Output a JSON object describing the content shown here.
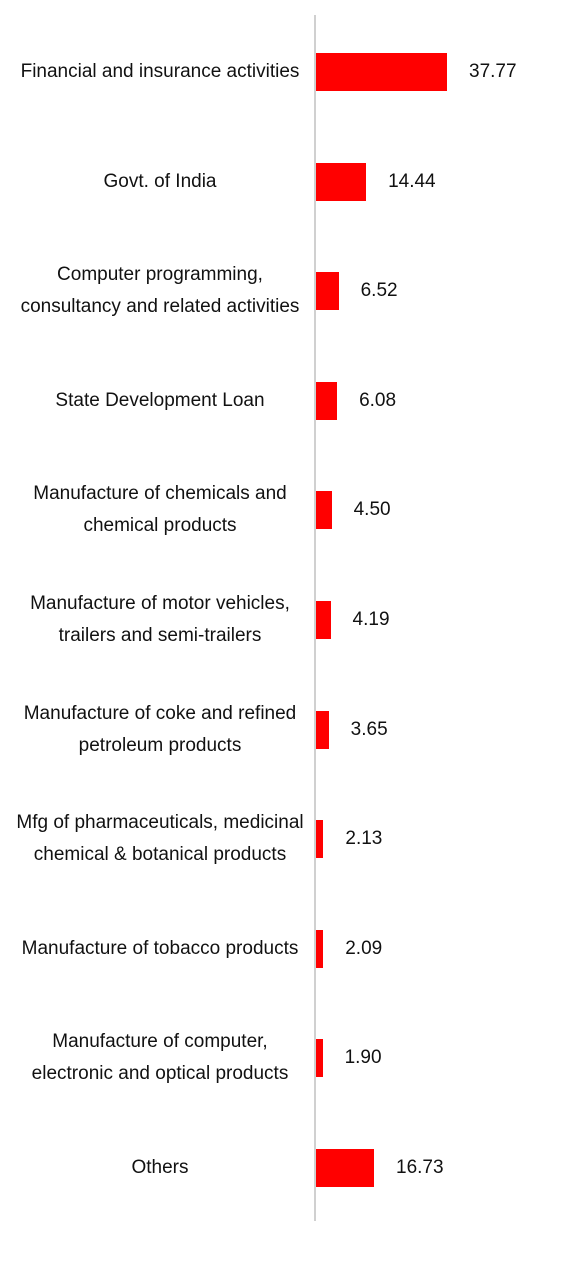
{
  "chart_data": {
    "type": "bar",
    "orientation": "horizontal",
    "categories": [
      "Financial and insurance activities",
      "Govt. of India",
      "Computer programming, consultancy and related activities",
      "State Development Loan",
      "Manufacture of chemicals and chemical products",
      "Manufacture of motor vehicles, trailers and semi-trailers",
      "Manufacture of coke and refined petroleum products",
      "Mfg of pharmaceuticals, medicinal chemical & botanical products",
      "Manufacture of tobacco products",
      "Manufacture of computer, electronic and optical products",
      "Others"
    ],
    "values": [
      37.77,
      14.44,
      6.52,
      6.08,
      4.5,
      4.19,
      3.65,
      2.13,
      2.09,
      1.9,
      16.73
    ],
    "value_labels": [
      "37.77",
      "14.44",
      "6.52",
      "6.08",
      "4.50",
      "4.19",
      "3.65",
      "2.13",
      "2.09",
      "1.90",
      "16.73"
    ],
    "color": "#ff0000"
  }
}
